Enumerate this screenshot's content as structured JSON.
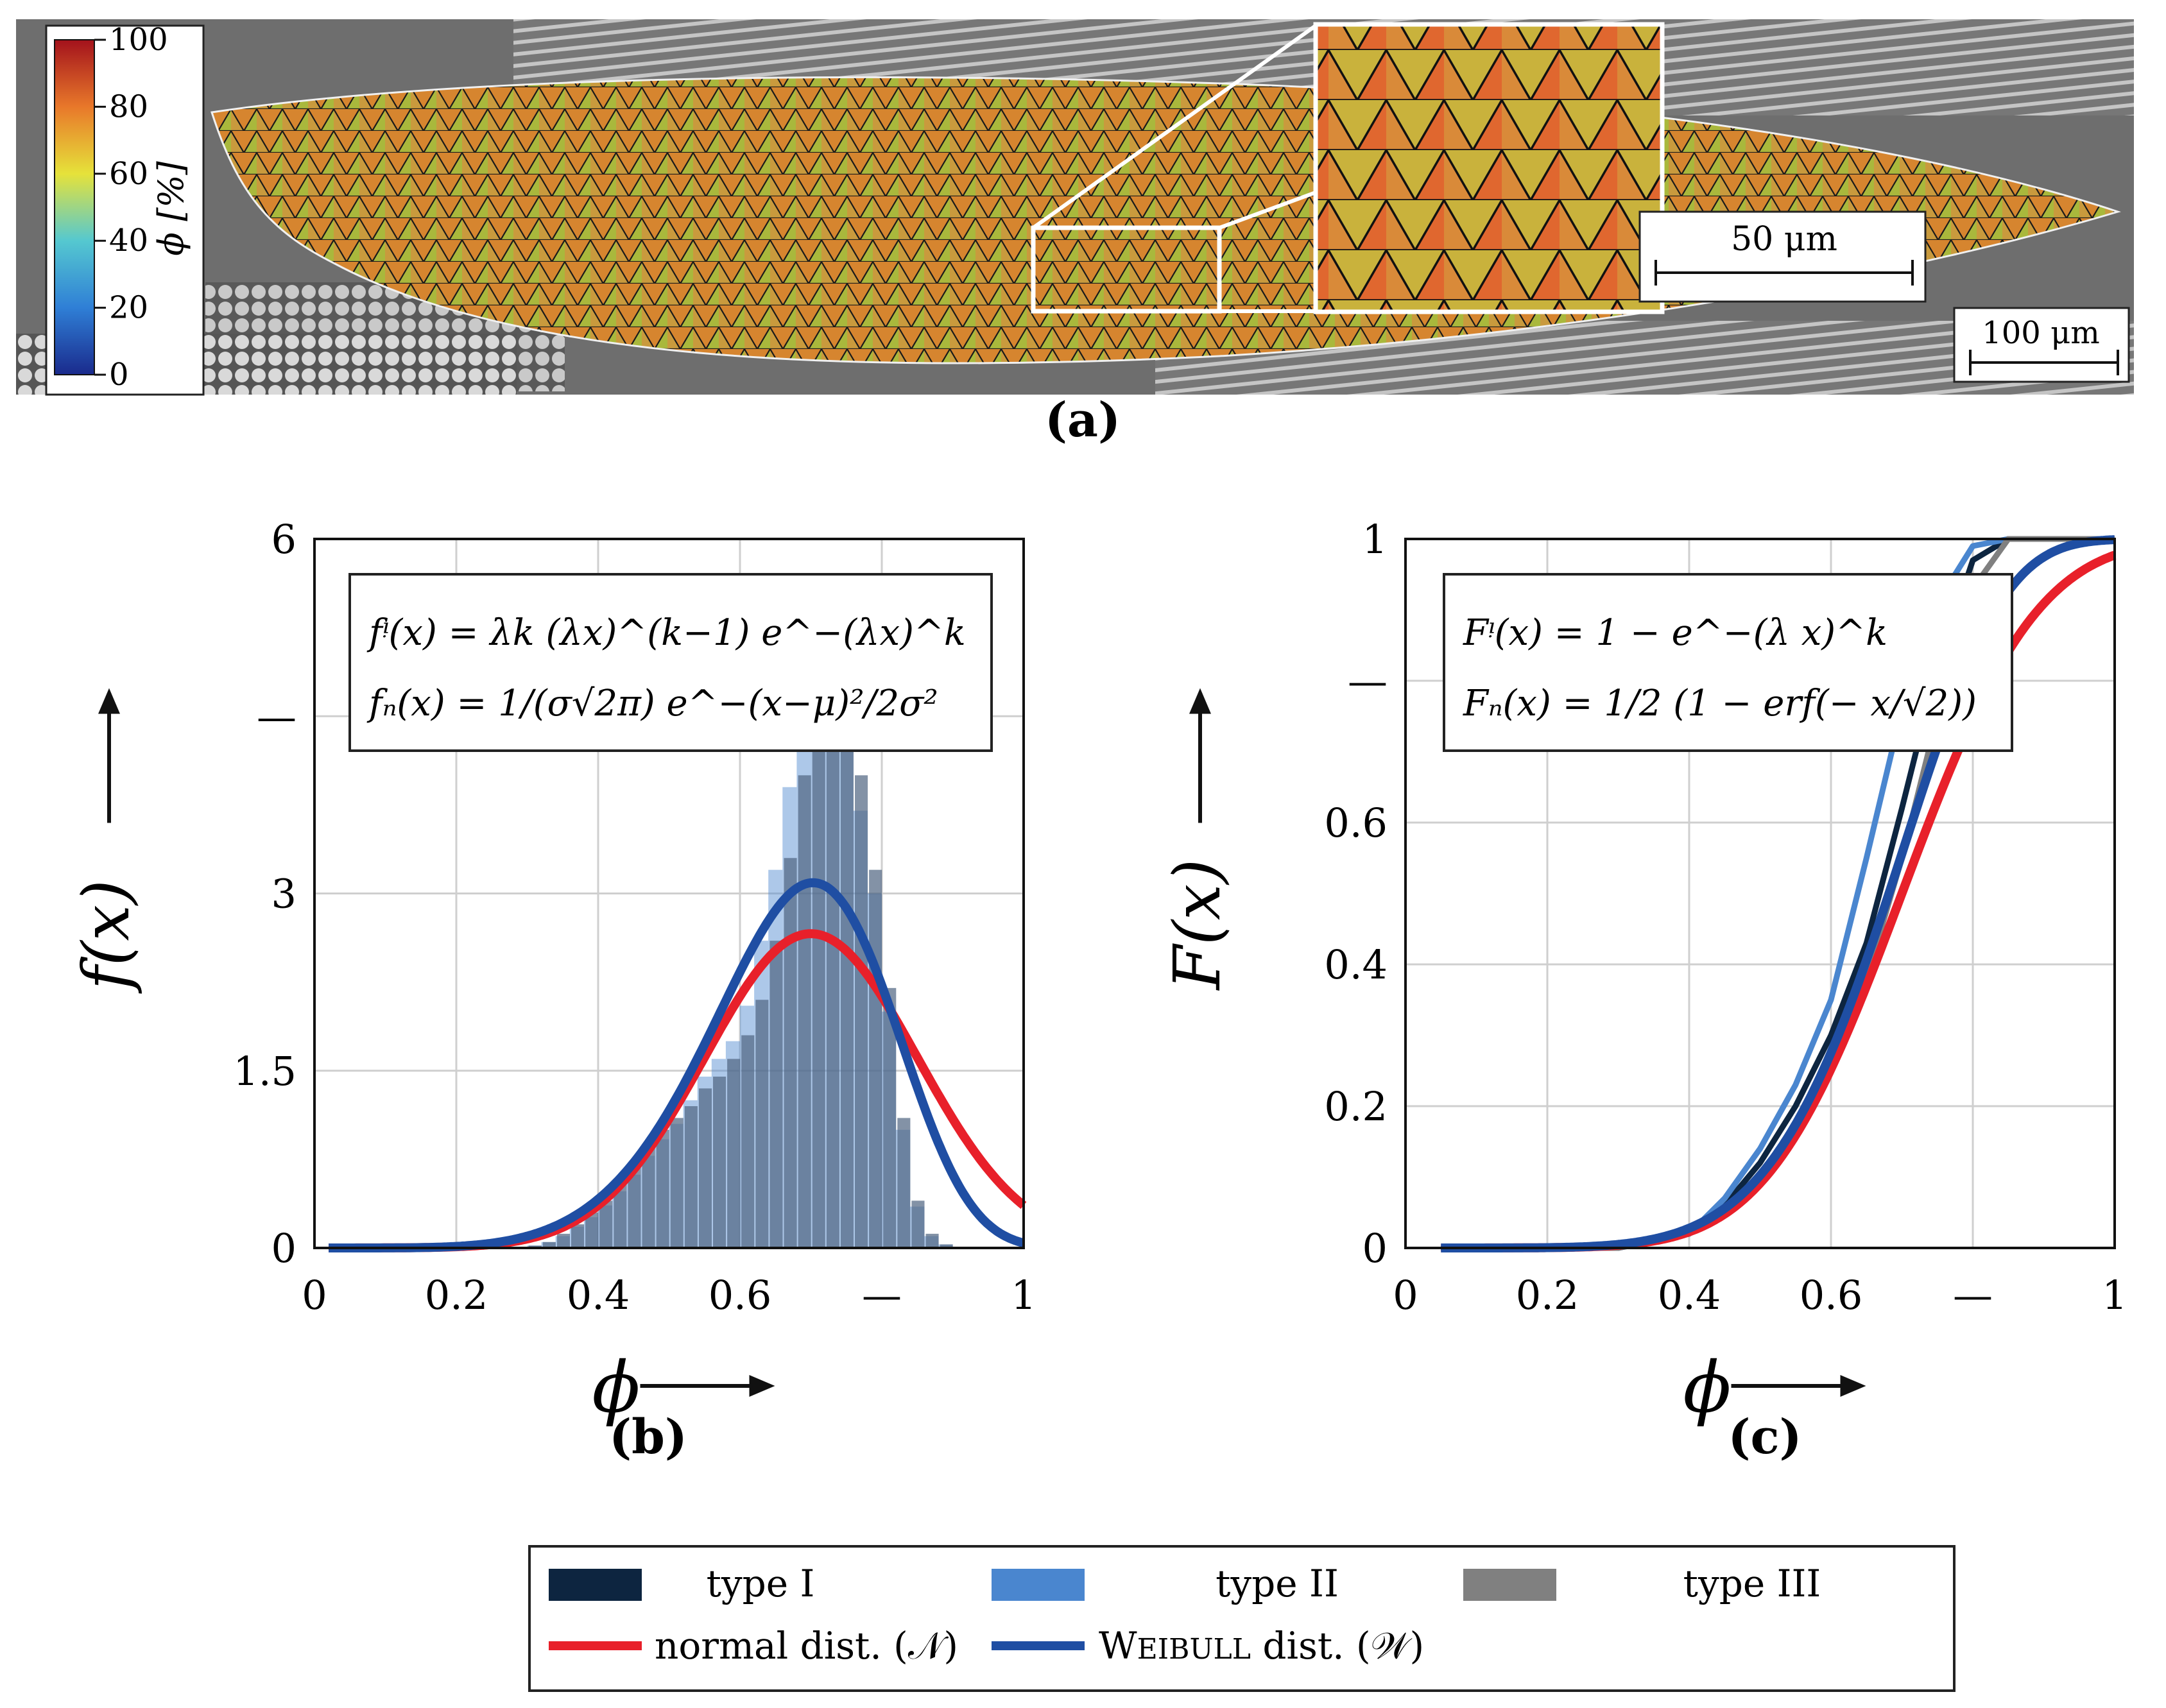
{
  "panel_a": {
    "label": "(a)",
    "colorbar": {
      "title": "ϕ [%]",
      "ticks": [
        "100",
        "80",
        "60",
        "40",
        "20",
        "0"
      ],
      "range": [
        0,
        100
      ]
    },
    "scalebar_main": "100 μm",
    "scalebar_inset": "50 μm"
  },
  "panel_b": {
    "label": "(b)",
    "formula_line1": "fᵎ(x) = λk (λx)^(k−1) e^−(λx)^k",
    "formula_line2": "fₙ(x) = 1/(σ√2π) e^−(x−μ)²/2σ²"
  },
  "panel_c": {
    "label": "(c)",
    "formula_line1": "Fᵎ(x) = 1 − e^−(λ x)^k",
    "formula_line2": "Fₙ(x) = 1/2 (1 − erf(− x/√2))"
  },
  "legend": {
    "type1": "type I",
    "type2": "type II",
    "type3": "type III",
    "normal": "normal dist. (𝒩)",
    "weibull_prefix": "W",
    "weibull_small": "EIBULL",
    "weibull_suffix": " dist. (𝒲)"
  },
  "colors": {
    "type1": "#0d2540",
    "type2": "#4a86cf",
    "type3": "#808080",
    "normal": "#e8202a",
    "weibull": "#1f4ea3",
    "grid": "#cfcfcf"
  },
  "chart_data": [
    {
      "id": "b",
      "type": "bar",
      "title": "",
      "xlabel": "ϕ",
      "ylabel": "f(x)",
      "xlim": [
        0,
        1
      ],
      "ylim": [
        0,
        6
      ],
      "xticks": [
        "0",
        "0.2",
        "0.4",
        "0.6",
        "—",
        "1"
      ],
      "yticks": [
        "0",
        "1.5",
        "3",
        "—",
        "6"
      ],
      "histogram": {
        "bin_width": 0.02,
        "bin_centers": [
          0.31,
          0.33,
          0.35,
          0.37,
          0.39,
          0.41,
          0.43,
          0.45,
          0.47,
          0.49,
          0.51,
          0.53,
          0.55,
          0.57,
          0.59,
          0.61,
          0.63,
          0.65,
          0.67,
          0.69,
          0.71,
          0.73,
          0.75,
          0.77,
          0.79,
          0.81,
          0.83,
          0.85,
          0.87,
          0.89
        ],
        "type2_values": [
          0.02,
          0.05,
          0.1,
          0.18,
          0.26,
          0.36,
          0.48,
          0.62,
          0.78,
          0.92,
          1.05,
          1.25,
          1.45,
          1.6,
          1.75,
          2.05,
          2.6,
          3.2,
          3.9,
          4.3,
          4.5,
          5.3,
          4.7,
          3.7,
          3.0,
          2.0,
          1.0,
          0.35,
          0.1,
          0.03
        ],
        "type3_values": [
          0.02,
          0.05,
          0.12,
          0.2,
          0.3,
          0.4,
          0.55,
          0.7,
          0.85,
          1.0,
          1.1,
          1.2,
          1.35,
          1.45,
          1.6,
          1.8,
          2.1,
          2.6,
          3.3,
          4.0,
          4.6,
          5.6,
          5.0,
          4.0,
          3.2,
          2.2,
          1.1,
          0.4,
          0.12,
          0.03
        ]
      },
      "series": [
        {
          "name": "normal dist. (N)",
          "mu": 0.7,
          "sigma": 0.15
        },
        {
          "name": "Weibull dist. (W)",
          "lambda": 1.38,
          "k": 6.0
        }
      ]
    },
    {
      "id": "c",
      "type": "line",
      "title": "",
      "xlabel": "ϕ",
      "ylabel": "F(x)",
      "xlim": [
        0,
        1
      ],
      "ylim": [
        0,
        1
      ],
      "xticks": [
        "0",
        "0.2",
        "0.4",
        "0.6",
        "—",
        "1"
      ],
      "yticks": [
        "0",
        "0.2",
        "0.4",
        "0.6",
        "—",
        "1"
      ],
      "series": [
        {
          "name": "type I",
          "x": [
            0.3,
            0.4,
            0.45,
            0.5,
            0.55,
            0.6,
            0.65,
            0.7,
            0.75,
            0.8,
            0.85,
            0.9,
            1.0
          ],
          "y": [
            0,
            0.02,
            0.06,
            0.12,
            0.2,
            0.3,
            0.43,
            0.62,
            0.82,
            0.97,
            1.0,
            1.0,
            1.0
          ]
        },
        {
          "name": "type II",
          "x": [
            0.3,
            0.4,
            0.45,
            0.5,
            0.55,
            0.6,
            0.65,
            0.7,
            0.75,
            0.8,
            0.85,
            0.9,
            1.0
          ],
          "y": [
            0,
            0.02,
            0.07,
            0.14,
            0.23,
            0.35,
            0.55,
            0.76,
            0.91,
            0.99,
            1.0,
            1.0,
            1.0
          ]
        },
        {
          "name": "type III",
          "x": [
            0.3,
            0.4,
            0.45,
            0.5,
            0.55,
            0.6,
            0.65,
            0.7,
            0.75,
            0.8,
            0.85,
            0.9,
            1.0
          ],
          "y": [
            0,
            0.02,
            0.05,
            0.1,
            0.17,
            0.26,
            0.38,
            0.55,
            0.75,
            0.93,
            1.0,
            1.0,
            1.0
          ]
        },
        {
          "name": "normal dist. (N)",
          "mu": 0.7,
          "sigma": 0.15
        },
        {
          "name": "Weibull dist. (W)",
          "lambda": 1.38,
          "k": 6.0
        }
      ]
    }
  ]
}
